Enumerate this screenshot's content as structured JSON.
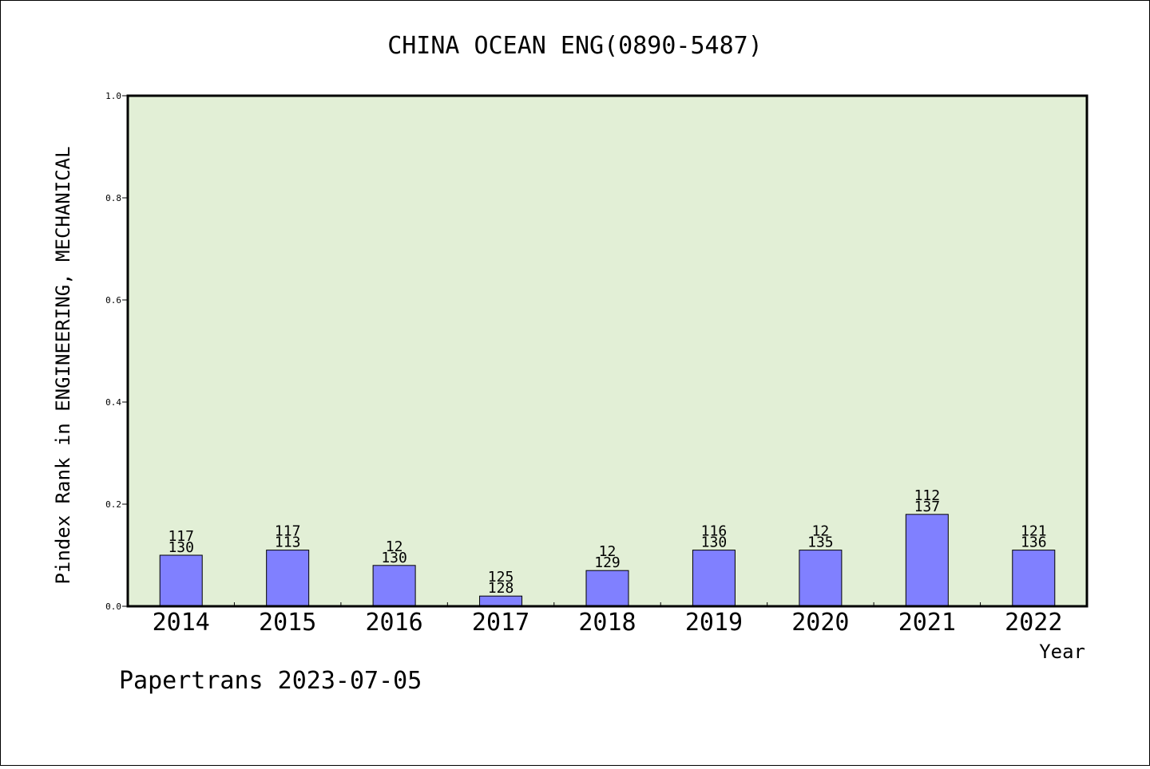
{
  "chart_data": {
    "type": "bar",
    "title": "CHINA OCEAN ENG(0890-5487)",
    "xlabel": "Year",
    "ylabel": "Pindex Rank in ENGINEERING, MECHANICAL",
    "ylim": [
      0,
      1.0
    ],
    "yticks": [
      "0.0",
      "0.2",
      "0.4",
      "0.6",
      "0.8",
      "1.0"
    ],
    "categories": [
      "2014",
      "2015",
      "2016",
      "2017",
      "2018",
      "2019",
      "2020",
      "2021",
      "2022"
    ],
    "values": [
      0.1,
      0.11,
      0.08,
      0.02,
      0.07,
      0.11,
      0.11,
      0.18,
      0.11
    ],
    "bar_labels_top": [
      "117",
      "117",
      "12",
      "125",
      "12",
      "116",
      "12",
      "112",
      "121"
    ],
    "bar_labels_bottom": [
      "130",
      "113",
      "130",
      "128",
      "129",
      "130",
      "135",
      "137",
      "136"
    ],
    "grid": false,
    "plot_background": "#e2efd6",
    "bar_color": "#8080ff",
    "footer": "Papertrans 2023-07-05"
  }
}
